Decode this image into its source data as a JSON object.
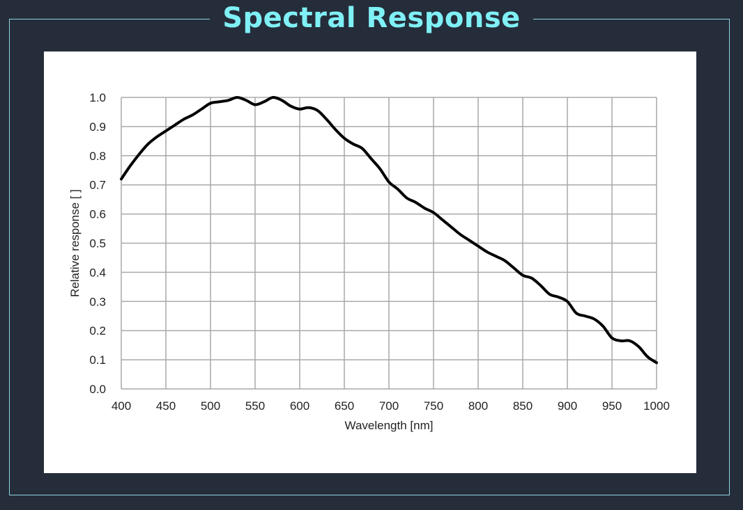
{
  "page": {
    "title": "Spectral Response"
  },
  "chart_data": {
    "type": "line",
    "xlabel": "Wavelength [nm]",
    "ylabel": "Relative response [ ]",
    "xlim": [
      400,
      1000
    ],
    "ylim": [
      0,
      1.0
    ],
    "grid": true,
    "x_ticks": [
      "400",
      "450",
      "500",
      "550",
      "600",
      "650",
      "700",
      "750",
      "800",
      "850",
      "900",
      "950",
      "1000"
    ],
    "y_ticks": [
      "0.0",
      "0.1",
      "0.2",
      "0.3",
      "0.4",
      "0.5",
      "0.6",
      "0.7",
      "0.8",
      "0.9",
      "1.0"
    ],
    "series": [
      {
        "color": "#000000",
        "x": [
          400,
          410,
          420,
          430,
          440,
          450,
          460,
          470,
          480,
          490,
          500,
          510,
          520,
          530,
          540,
          550,
          560,
          570,
          580,
          590,
          600,
          610,
          620,
          630,
          640,
          650,
          660,
          670,
          680,
          690,
          700,
          710,
          720,
          730,
          740,
          750,
          760,
          770,
          780,
          790,
          800,
          810,
          820,
          830,
          840,
          850,
          860,
          870,
          880,
          890,
          900,
          910,
          920,
          930,
          940,
          950,
          960,
          970,
          980,
          990,
          1000
        ],
        "y": [
          0.72,
          0.765,
          0.805,
          0.84,
          0.865,
          0.885,
          0.905,
          0.925,
          0.94,
          0.96,
          0.98,
          0.985,
          0.99,
          1.0,
          0.99,
          0.975,
          0.985,
          1.0,
          0.99,
          0.97,
          0.96,
          0.965,
          0.955,
          0.925,
          0.89,
          0.86,
          0.84,
          0.825,
          0.79,
          0.755,
          0.71,
          0.685,
          0.655,
          0.64,
          0.62,
          0.605,
          0.58,
          0.555,
          0.53,
          0.51,
          0.49,
          0.47,
          0.455,
          0.44,
          0.415,
          0.39,
          0.38,
          0.355,
          0.325,
          0.315,
          0.3,
          0.26,
          0.25,
          0.24,
          0.215,
          0.175,
          0.165,
          0.165,
          0.145,
          0.11,
          0.09
        ]
      }
    ]
  }
}
